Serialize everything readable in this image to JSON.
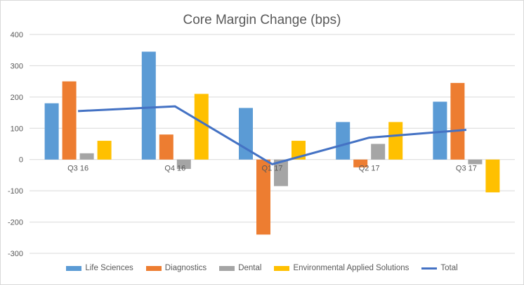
{
  "chart_data": {
    "type": "bar",
    "title": "Core Margin Change (bps)",
    "categories": [
      "Q3 16",
      "Q4 16",
      "Q1 17",
      "Q2 17",
      "Q3 17"
    ],
    "ylim": [
      -300,
      400
    ],
    "yticks": [
      400,
      300,
      200,
      100,
      0,
      -100,
      -200,
      -300
    ],
    "grid": true,
    "legend": "bottom",
    "series": [
      {
        "name": "Life Sciences",
        "type": "bar",
        "color": "#5b9bd5",
        "values": [
          180,
          345,
          165,
          120,
          185
        ]
      },
      {
        "name": "Diagnostics",
        "type": "bar",
        "color": "#ed7d31",
        "values": [
          250,
          80,
          -240,
          -25,
          245
        ]
      },
      {
        "name": "Dental",
        "type": "bar",
        "color": "#a5a5a5",
        "values": [
          20,
          -30,
          -85,
          50,
          -15
        ]
      },
      {
        "name": "Environmental  Applied Solutions",
        "type": "bar",
        "color": "#ffc000",
        "values": [
          60,
          210,
          60,
          120,
          -105
        ]
      },
      {
        "name": "Total",
        "type": "line",
        "color": "#4472c4",
        "values": [
          155,
          170,
          -15,
          70,
          95
        ]
      }
    ]
  }
}
